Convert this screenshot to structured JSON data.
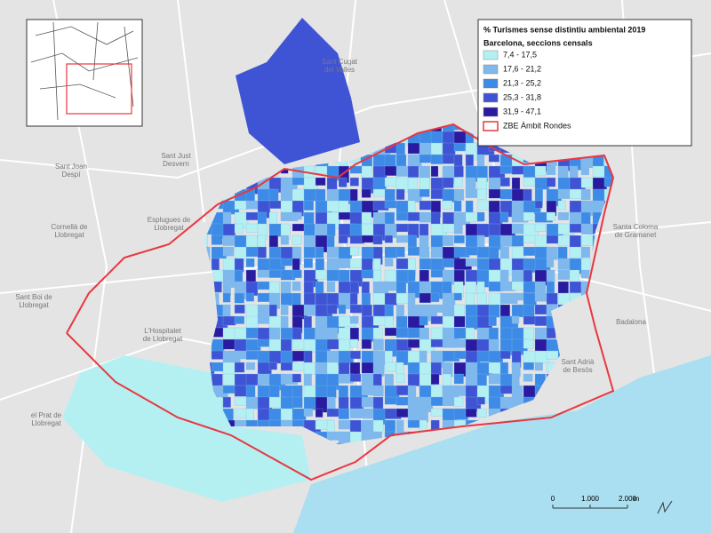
{
  "legend": {
    "title": "% Turismes sense distintiu ambiental 2019",
    "subtitle": "Barcelona, seccions censals",
    "items": [
      {
        "label": "7,4 - 17,5",
        "color": "#b4f0f2"
      },
      {
        "label": "17,6 - 21,2",
        "color": "#7fb8ec"
      },
      {
        "label": "21,3 - 25,2",
        "color": "#3d8be6"
      },
      {
        "label": "25,3 - 31,8",
        "color": "#3f54d4"
      },
      {
        "label": "31,9 - 47,1",
        "color": "#2a1aa0"
      }
    ],
    "boundary": {
      "label": "ZBE Àmbit Rondes",
      "color": "#e8373f"
    }
  },
  "places": [
    {
      "lines": [
        "Sant Cugat",
        "del Vallès"
      ]
    },
    {
      "lines": [
        "Sant Just",
        "Desvern"
      ]
    },
    {
      "lines": [
        "Sant Joan",
        "Despí"
      ]
    },
    {
      "lines": [
        "Esplugues de",
        "Llobregat"
      ]
    },
    {
      "lines": [
        "Cornellà de",
        "Llobregat"
      ]
    },
    {
      "lines": [
        "Sant Boi de",
        "Llobregat"
      ]
    },
    {
      "lines": [
        "L'Hospitalet",
        "de Llobregat"
      ]
    },
    {
      "lines": [
        "el Prat de",
        "Llobregat"
      ]
    },
    {
      "lines": [
        "Santa Coloma",
        "de Gramanet"
      ]
    },
    {
      "lines": [
        "Badalona"
      ]
    },
    {
      "lines": [
        "Sant Adrià",
        "de Besòs"
      ]
    }
  ],
  "scale_bar": {
    "labels": [
      "0",
      "1.000",
      "2.000"
    ],
    "unit": "m"
  }
}
